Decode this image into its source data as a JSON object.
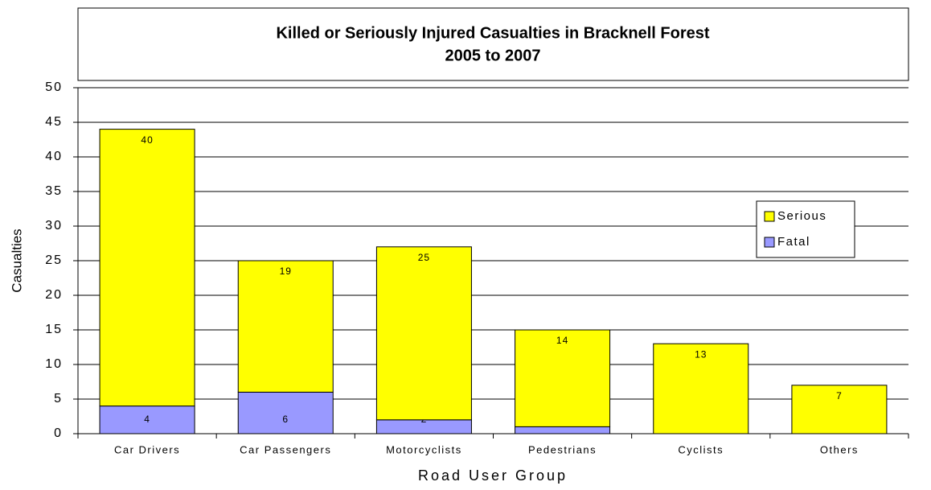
{
  "chart_data": {
    "type": "stacked_bar",
    "title": [
      "Killed or Seriously Injured Casualties in Bracknell Forest",
      "2005 to 2007"
    ],
    "x_label": "Road User Group",
    "y_label": "Casualties",
    "categories": [
      "Car Drivers",
      "Car Passengers",
      "Motorcyclists",
      "Pedestrians",
      "Cyclists",
      "Others"
    ],
    "series": [
      {
        "name": "Fatal",
        "color": "#9999ff",
        "values": [
          4,
          6,
          2,
          1,
          0,
          0
        ]
      },
      {
        "name": "Serious",
        "color": "#ffff00",
        "values": [
          40,
          19,
          25,
          14,
          13,
          7
        ]
      }
    ],
    "ylim": [
      0,
      50
    ],
    "yticks": [
      0,
      5,
      10,
      15,
      20,
      25,
      30,
      35,
      40,
      45,
      50
    ],
    "grid": true,
    "legend": "right"
  }
}
